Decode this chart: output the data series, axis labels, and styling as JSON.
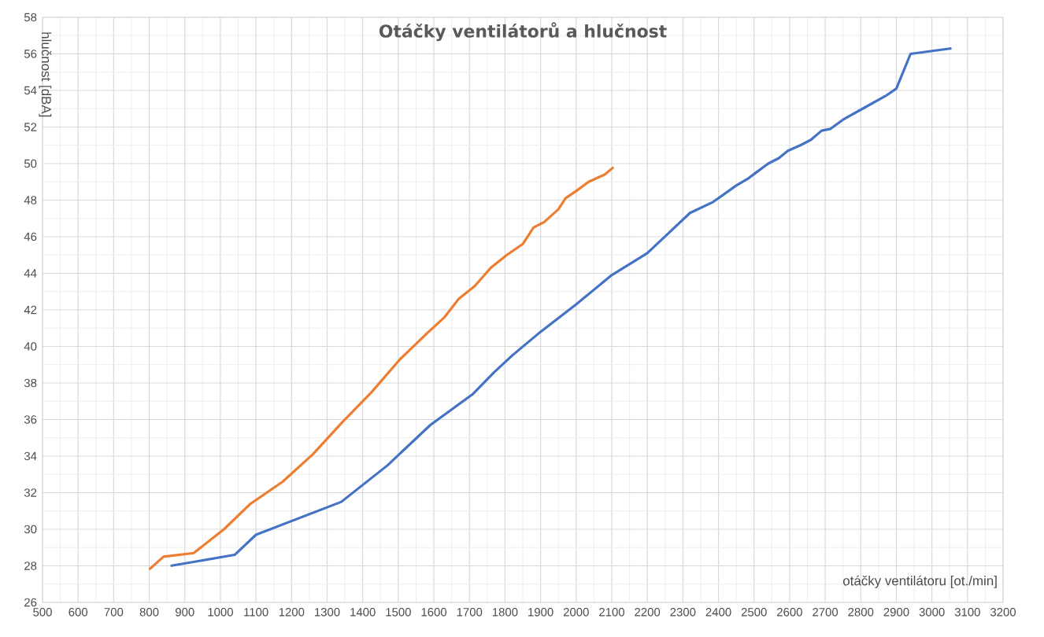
{
  "chart_data": {
    "type": "line",
    "title": "Otáčky ventilátorů a hlučnost",
    "xlabel": "otáčky ventilátoru [ot./min]",
    "ylabel": "hlučnost [dBA]",
    "xlim": [
      500,
      3200
    ],
    "xticks": [
      500,
      600,
      700,
      800,
      900,
      1000,
      1100,
      1200,
      1300,
      1400,
      1500,
      1600,
      1700,
      1800,
      1900,
      2000,
      2100,
      2200,
      2300,
      2400,
      2500,
      2600,
      2700,
      2800,
      2900,
      3000,
      3100,
      3200
    ],
    "ylim": [
      26,
      58
    ],
    "yticks": [
      26,
      28,
      30,
      32,
      34,
      36,
      38,
      40,
      42,
      44,
      46,
      48,
      50,
      52,
      54,
      56,
      58
    ],
    "grid": true,
    "line_style": "solid",
    "series": [
      {
        "color": "#4472c4",
        "x": [
          860,
          1040,
          1100,
          1340,
          1470,
          1590,
          1710,
          1770,
          1820,
          1900,
          2000,
          2100,
          2200,
          2260,
          2320,
          2385,
          2450,
          2485,
          2505,
          2540,
          2570,
          2595,
          2630,
          2660,
          2690,
          2715,
          2750,
          2805,
          2870,
          2900,
          2940,
          3055
        ],
        "values": [
          28.0,
          28.6,
          29.7,
          31.5,
          33.5,
          35.7,
          37.4,
          38.6,
          39.5,
          40.8,
          42.3,
          43.9,
          45.1,
          46.2,
          47.3,
          47.9,
          48.8,
          49.2,
          49.5,
          50.0,
          50.3,
          50.7,
          51.0,
          51.3,
          51.8,
          51.9,
          52.4,
          53.0,
          53.7,
          54.1,
          56.0,
          56.3
        ]
      },
      {
        "color": "#ed7d31",
        "x": [
          800,
          840,
          925,
          1010,
          1085,
          1175,
          1260,
          1340,
          1425,
          1505,
          1580,
          1630,
          1670,
          1715,
          1760,
          1805,
          1850,
          1880,
          1910,
          1950,
          1970,
          2000,
          2035,
          2080,
          2105
        ],
        "values": [
          27.8,
          28.5,
          28.7,
          30.0,
          31.4,
          32.6,
          34.1,
          35.8,
          37.5,
          39.3,
          40.7,
          41.6,
          42.6,
          43.3,
          44.3,
          45.0,
          45.6,
          46.5,
          46.8,
          47.5,
          48.1,
          48.5,
          49.0,
          49.4,
          49.8
        ]
      }
    ]
  }
}
